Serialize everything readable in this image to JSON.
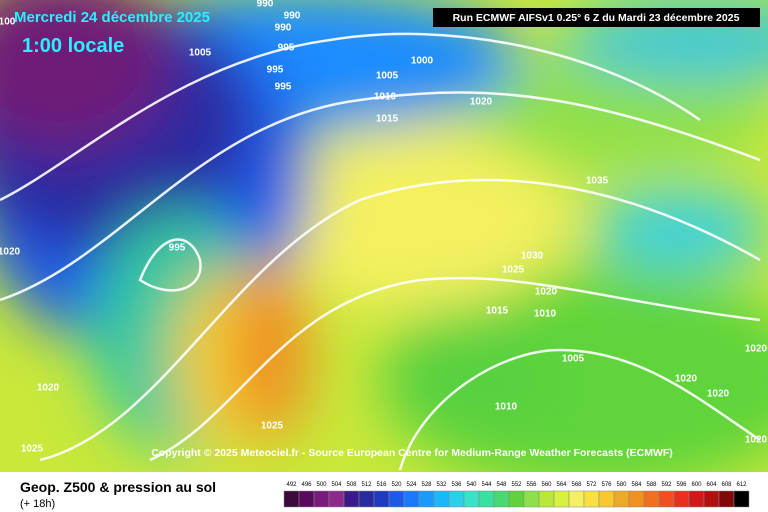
{
  "header": {
    "date": "Mercredi 24 décembre 2025",
    "time": "1:00 locale",
    "run": "Run ECMWF AIFSv1 0.25° 6 Z du Mardi 23 décembre 2025"
  },
  "copyright": "Copyright © 2025 Meteociel.fr - Source European Centre for Medium-Range Weather Forecasts (ECMWF)",
  "footer": {
    "title": "Geop. Z500 & pression au sol",
    "lead": "(+ 18h)"
  },
  "scale": {
    "labels": [
      "492",
      "496",
      "500",
      "504",
      "508",
      "512",
      "516",
      "520",
      "524",
      "528",
      "532",
      "536",
      "540",
      "544",
      "548",
      "552",
      "556",
      "560",
      "564",
      "568",
      "572",
      "576",
      "580",
      "584",
      "588",
      "592",
      "596",
      "600",
      "604",
      "608",
      "612"
    ]
  },
  "isobars": [
    "990",
    "990",
    "990",
    "995",
    "1005",
    "995",
    "995",
    "1000",
    "1005",
    "1010",
    "1015",
    "1020",
    "1035",
    "995",
    "1020",
    "1030",
    "1025",
    "1020",
    "1015",
    "1010",
    "1005",
    "1020",
    "1020",
    "1020",
    "1010",
    "1020",
    "1025",
    "1025",
    "1020",
    "100"
  ]
}
